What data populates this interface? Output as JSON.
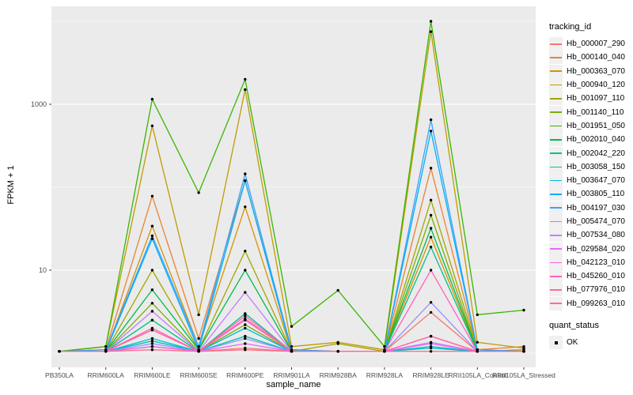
{
  "chart_data": {
    "type": "line",
    "title": "",
    "xlabel": "sample_name",
    "ylabel": "FPKM + 1",
    "y_scale": "log10",
    "grid": true,
    "legend_position": "right",
    "panel_bg": "#EBEBEB",
    "grid_color": "#FFFFFF",
    "point_color": "#000000",
    "axis_text_color": "#4D4D4D",
    "y_ticks": [
      {
        "label": "10",
        "value": 10
      },
      {
        "label": "1000",
        "value": 1000
      }
    ],
    "y_minor_values": [
      1,
      100,
      10000
    ],
    "ylim_display": [
      0.67,
      15000
    ],
    "categories": [
      "PB350LA",
      "RRIM600LA",
      "RRIM600LE",
      "RRIM600SE",
      "RRIM600PE",
      "RRIM901LA",
      "RRIM928BA",
      "RRIM928LA",
      "RRIM928LE",
      "RRII105LA_Control",
      "RRII105LA_Stressed"
    ],
    "series": [
      {
        "name": "Hb_000007_290",
        "color": "#F8766D",
        "values": [
          1.05,
          1.05,
          1.2,
          1.05,
          1.15,
          1.05,
          1.05,
          1.05,
          3.1,
          1.05,
          1.05
        ]
      },
      {
        "name": "Hb_000140_040",
        "color": "#EA8331",
        "values": [
          1.05,
          1.1,
          78,
          1.5,
          120,
          1.1,
          1.05,
          1.05,
          170,
          1.1,
          1.2
        ]
      },
      {
        "name": "Hb_000363_070",
        "color": "#D89000",
        "values": [
          1.05,
          1.05,
          34,
          1.2,
          58,
          1.05,
          1.05,
          1.05,
          25,
          1.05,
          1.1
        ]
      },
      {
        "name": "Hb_000940_120",
        "color": "#C09B00",
        "values": [
          1.05,
          1.2,
          550,
          2.9,
          1500,
          1.2,
          1.35,
          1.1,
          7500,
          1.35,
          1.15
        ]
      },
      {
        "name": "Hb_001097_110",
        "color": "#A3A500",
        "values": [
          1.05,
          1.05,
          10,
          1.1,
          17,
          1.05,
          1.3,
          1.05,
          70,
          1.1,
          1.05
        ]
      },
      {
        "name": "Hb_001140_110",
        "color": "#7CAE00",
        "values": [
          1.05,
          1.05,
          4,
          1.05,
          2.2,
          1.05,
          1.05,
          1.05,
          46,
          1.05,
          1.05
        ]
      },
      {
        "name": "Hb_001951_050",
        "color": "#39B600",
        "values": [
          1.05,
          1.2,
          1150,
          86,
          2000,
          2.1,
          5.7,
          1.2,
          10000,
          2.9,
          3.3
        ]
      },
      {
        "name": "Hb_002010_040",
        "color": "#00BB4E",
        "values": [
          1.05,
          1.05,
          5.8,
          1.1,
          10,
          1.05,
          1.05,
          1.05,
          32,
          1.05,
          1.05
        ]
      },
      {
        "name": "Hb_002042_220",
        "color": "#00C087",
        "values": [
          1.05,
          1.05,
          2.5,
          1.05,
          3,
          1.05,
          1.05,
          1.05,
          19,
          1.05,
          1.05
        ]
      },
      {
        "name": "Hb_003058_150",
        "color": "#00C0AF",
        "values": [
          1.05,
          1.05,
          1.4,
          1.05,
          1.6,
          1.05,
          1.05,
          1.05,
          1.15,
          1.05,
          1.05
        ]
      },
      {
        "name": "Hb_003647_070",
        "color": "#00BCD8",
        "values": [
          1.05,
          1.05,
          1.5,
          1.05,
          2,
          1.05,
          1.05,
          1.05,
          1.2,
          1.05,
          1.05
        ]
      },
      {
        "name": "Hb_003805_110",
        "color": "#00B0F6",
        "values": [
          1.05,
          1.05,
          24,
          1.1,
          120,
          1.05,
          1.05,
          1.05,
          475,
          1.1,
          1.05
        ]
      },
      {
        "name": "Hb_004197_030",
        "color": "#35A2FF",
        "values": [
          1.05,
          1.1,
          26,
          1.2,
          145,
          1.1,
          1.05,
          1.05,
          650,
          1.1,
          1.05
        ]
      },
      {
        "name": "Hb_005474_070",
        "color": "#9590FF",
        "values": [
          1.05,
          1.05,
          1.3,
          1.05,
          1.5,
          1.05,
          1.05,
          1.05,
          4.1,
          1.05,
          1.05
        ]
      },
      {
        "name": "Hb_007534_080",
        "color": "#C77CFF",
        "values": [
          1.05,
          1.05,
          3.2,
          1.05,
          5.4,
          1.05,
          1.05,
          1.05,
          1.35,
          1.05,
          1.05
        ]
      },
      {
        "name": "Hb_029584_020",
        "color": "#E76BF3",
        "values": [
          1.05,
          1.05,
          1.2,
          1.05,
          1.3,
          1.05,
          1.05,
          1.05,
          1.3,
          1.05,
          1.05
        ]
      },
      {
        "name": "Hb_042123_010",
        "color": "#FA62DB",
        "values": [
          1.05,
          1.05,
          1.9,
          1.05,
          2.5,
          1.05,
          1.05,
          1.05,
          1.6,
          1.05,
          1.05
        ]
      },
      {
        "name": "Hb_045260_010",
        "color": "#FF62BC",
        "values": [
          1.05,
          1.05,
          2,
          1.05,
          2.8,
          1.05,
          1.05,
          1.05,
          10,
          1.05,
          1.05
        ]
      },
      {
        "name": "Hb_077976_010",
        "color": "#FF6A98",
        "values": [
          1.05,
          1.05,
          1.9,
          1.05,
          2.6,
          1.05,
          1.05,
          1.05,
          1.6,
          1.05,
          1.05
        ]
      },
      {
        "name": "Hb_099263_010",
        "color": "#FF6C91",
        "values": [
          1.05,
          1.05,
          1.1,
          1.05,
          1.1,
          1.05,
          1.05,
          1.05,
          1.05,
          1.05,
          1.05
        ]
      }
    ]
  },
  "legend": {
    "tracking_title": "tracking_id",
    "quant_title": "quant_status",
    "quant_items": [
      {
        "label": "OK",
        "symbol": "black-point"
      }
    ]
  }
}
